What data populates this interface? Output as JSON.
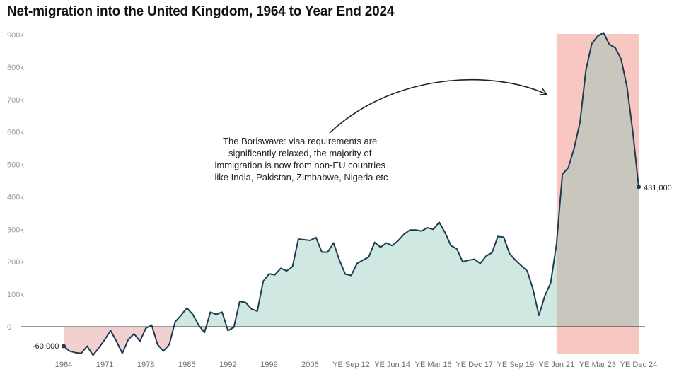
{
  "chart_data": {
    "type": "area",
    "title": "Net-migration into the United Kingdom, 1964 to Year End 2024",
    "xlabel": "",
    "ylabel": "",
    "ylim": [
      -100000,
      900000
    ],
    "y_ticks": [
      0,
      100000,
      200000,
      300000,
      400000,
      500000,
      600000,
      700000,
      800000,
      900000
    ],
    "y_tick_labels": [
      "0",
      "100k",
      "200k",
      "300k",
      "400k",
      "500k",
      "600k",
      "700k",
      "800k",
      "900k"
    ],
    "x_tick_labels": [
      "1964",
      "1971",
      "1978",
      "1985",
      "1992",
      "1999",
      "2006",
      "YE Sep 12",
      "YE Jun 14",
      "YE Mar 16",
      "YE Dec 17",
      "YE Sep 19",
      "YE Jun 21",
      "YE Mar 23",
      "YE Dec 24"
    ],
    "grid": false,
    "x_tick_index": [
      0,
      7,
      14,
      21,
      28,
      35,
      42,
      49,
      56,
      63,
      70,
      77,
      84,
      91,
      98
    ],
    "highlight_index_range": [
      84,
      98
    ],
    "colors": {
      "line": "#1f3b52",
      "positive_fill": "#cfe8e2",
      "negative_fill": "#f3d0d0",
      "highlight": "#f9c7c2",
      "highlight_fill": "#c9c6bd",
      "zero_line": "#333333"
    },
    "series": [
      {
        "values": [
          -60000,
          -75000,
          -80000,
          -82000,
          -60000,
          -88000,
          -65000,
          -40000,
          -12000,
          -45000,
          -82000,
          -40000,
          -22000,
          -45000,
          -5000,
          5000,
          -55000,
          -75000,
          -55000,
          15000,
          35000,
          58000,
          38000,
          5000,
          -18000,
          45000,
          38000,
          45000,
          -12000,
          -2000,
          78000,
          75000,
          55000,
          48000,
          140000,
          163000,
          160000,
          180000,
          172000,
          185000,
          270000,
          268000,
          266000,
          275000,
          230000,
          230000,
          258000,
          205000,
          162000,
          158000,
          195000,
          205000,
          215000,
          260000,
          245000,
          258000,
          250000,
          265000,
          285000,
          298000,
          298000,
          295000,
          305000,
          300000,
          322000,
          290000,
          250000,
          240000,
          200000,
          205000,
          208000,
          195000,
          218000,
          228000,
          278000,
          276000,
          225000,
          205000,
          188000,
          172000,
          115000,
          35000,
          95000,
          135000,
          255000,
          470000,
          490000,
          550000,
          630000,
          790000,
          872000,
          895000,
          906000,
          870000,
          860000,
          825000,
          740000,
          600000,
          431000
        ]
      }
    ],
    "annotations": [
      {
        "text_lines": [
          "The Boriswave: visa requirements are",
          "significantly relaxed, the majority of",
          "immigration is now from non-EU countries",
          "like India, Pakistan, Zimbabwe, Nigeria etc"
        ]
      },
      {
        "text": "-60,000"
      },
      {
        "text": "431,000"
      }
    ]
  }
}
